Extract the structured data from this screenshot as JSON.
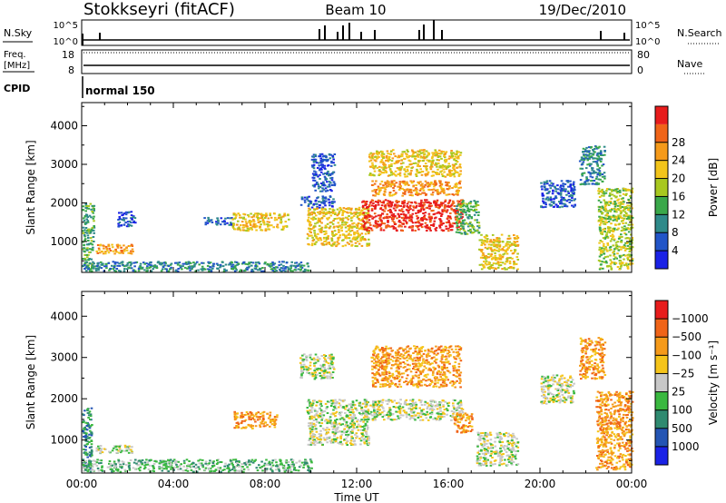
{
  "header": {
    "station": "Stokkseyri (fitACF)",
    "beam": "Beam 10",
    "date": "19/Dec/2010"
  },
  "nsky": {
    "label": "N.Sky",
    "left_top": "10^5",
    "left_bottom": "10^0",
    "right_top": "10^5",
    "right_bottom": "10^0",
    "right_label": "N.Search"
  },
  "freq": {
    "label_line1": "Freq.",
    "label_line2": "[MHz]",
    "left_top": "18",
    "left_bottom": "8",
    "right_top": "80",
    "right_bottom": "0",
    "right_label": "Nave"
  },
  "cpid": {
    "label": "CPID",
    "mode": "normal 150"
  },
  "chart_data": [
    {
      "type": "heatmap",
      "name": "power-panel",
      "ylabel": "Slant Range [km]",
      "xlabel": "Time UT",
      "x_ticks": [
        "00:00",
        "04:00",
        "08:00",
        "12:00",
        "16:00",
        "20:00",
        "00:00"
      ],
      "x_tick_hours": [
        0,
        4,
        8,
        12,
        16,
        20,
        24
      ],
      "y_ticks": [
        1000,
        2000,
        3000,
        4000
      ],
      "ylim": [
        200,
        4600
      ],
      "xlim": [
        0,
        24
      ],
      "colorbar": {
        "label": "Power [dB]",
        "ticks": [
          "4",
          "8",
          "12",
          "16",
          "20",
          "24",
          "28"
        ],
        "colors": [
          "#1a22e6",
          "#2255c8",
          "#2f8a8a",
          "#3aa84a",
          "#a8c820",
          "#f2c41a",
          "#f59a1a",
          "#f06418",
          "#e81c1c"
        ]
      },
      "regions": [
        {
          "t0": 0.0,
          "t1": 0.5,
          "r0": 300,
          "r1": 2000,
          "level": 3
        },
        {
          "t0": 0.6,
          "t1": 2.2,
          "r0": 700,
          "r1": 950,
          "level": 6
        },
        {
          "t0": 1.5,
          "t1": 2.3,
          "r0": 1400,
          "r1": 1800,
          "level": 1
        },
        {
          "t0": 0.0,
          "t1": 10.0,
          "r0": 250,
          "r1": 500,
          "level": 2
        },
        {
          "t0": 5.3,
          "t1": 6.5,
          "r0": 1450,
          "r1": 1650,
          "level": 1
        },
        {
          "t0": 6.5,
          "t1": 9.0,
          "r0": 1300,
          "r1": 1750,
          "level": 5
        },
        {
          "t0": 9.5,
          "t1": 11.0,
          "r0": 1900,
          "r1": 2200,
          "level": 1
        },
        {
          "t0": 9.8,
          "t1": 12.5,
          "r0": 900,
          "r1": 1900,
          "level": 5
        },
        {
          "t0": 10.0,
          "t1": 11.0,
          "r0": 2300,
          "r1": 3300,
          "level": 1
        },
        {
          "t0": 12.2,
          "t1": 16.6,
          "r0": 1300,
          "r1": 2100,
          "level": 8
        },
        {
          "t0": 12.6,
          "t1": 16.5,
          "r0": 2200,
          "r1": 2600,
          "level": 6
        },
        {
          "t0": 12.5,
          "t1": 16.5,
          "r0": 2700,
          "r1": 3400,
          "level": 5
        },
        {
          "t0": 16.3,
          "t1": 17.3,
          "r0": 1200,
          "r1": 2100,
          "level": 3
        },
        {
          "t0": 17.3,
          "t1": 19.0,
          "r0": 300,
          "r1": 1200,
          "level": 5
        },
        {
          "t0": 20.0,
          "t1": 21.5,
          "r0": 1900,
          "r1": 2600,
          "level": 1
        },
        {
          "t0": 21.7,
          "t1": 22.8,
          "r0": 2500,
          "r1": 3500,
          "level": 2
        },
        {
          "t0": 22.5,
          "t1": 24.0,
          "r0": 300,
          "r1": 2400,
          "level": 4
        }
      ]
    },
    {
      "type": "heatmap",
      "name": "velocity-panel",
      "ylabel": "Slant Range [km]",
      "xlabel": "Time UT",
      "x_ticks": [
        "00:00",
        "04:00",
        "08:00",
        "12:00",
        "16:00",
        "20:00",
        "00:00"
      ],
      "x_tick_hours": [
        0,
        4,
        8,
        12,
        16,
        20,
        24
      ],
      "y_ticks": [
        1000,
        2000,
        3000,
        4000
      ],
      "ylim": [
        200,
        4600
      ],
      "xlim": [
        0,
        24
      ],
      "colorbar": {
        "label": "Velocity [m s⁻¹]",
        "ticks": [
          "1000",
          "500",
          "100",
          "25",
          "−25",
          "−100",
          "−500",
          "−1000"
        ],
        "colors": [
          "#1a22e6",
          "#2455b4",
          "#2f8a70",
          "#3ab840",
          "#c8c8c8",
          "#f5c41a",
          "#f59a1a",
          "#f06418",
          "#e81c1c"
        ]
      },
      "regions": [
        {
          "t0": 0.0,
          "t1": 0.4,
          "r0": 300,
          "r1": 1800,
          "level": 2
        },
        {
          "t0": 0.6,
          "t1": 2.2,
          "r0": 700,
          "r1": 900,
          "level": 4
        },
        {
          "t0": 0.0,
          "t1": 10.0,
          "r0": 250,
          "r1": 550,
          "level": 3
        },
        {
          "t0": 6.6,
          "t1": 8.5,
          "r0": 1300,
          "r1": 1700,
          "level": 6
        },
        {
          "t0": 9.5,
          "t1": 11.0,
          "r0": 2500,
          "r1": 3100,
          "level": 4
        },
        {
          "t0": 9.8,
          "t1": 12.5,
          "r0": 900,
          "r1": 2000,
          "level": 4
        },
        {
          "t0": 12.3,
          "t1": 16.6,
          "r0": 1500,
          "r1": 2000,
          "level": 4
        },
        {
          "t0": 12.6,
          "t1": 16.5,
          "r0": 2300,
          "r1": 3300,
          "level": 6
        },
        {
          "t0": 16.2,
          "t1": 17.0,
          "r0": 1200,
          "r1": 1700,
          "level": 6
        },
        {
          "t0": 17.2,
          "t1": 19.0,
          "r0": 400,
          "r1": 1200,
          "level": 4
        },
        {
          "t0": 20.0,
          "t1": 21.5,
          "r0": 1900,
          "r1": 2600,
          "level": 4
        },
        {
          "t0": 21.7,
          "t1": 22.8,
          "r0": 2500,
          "r1": 3500,
          "level": 6
        },
        {
          "t0": 22.4,
          "t1": 24.0,
          "r0": 300,
          "r1": 2200,
          "level": 6
        }
      ]
    }
  ]
}
